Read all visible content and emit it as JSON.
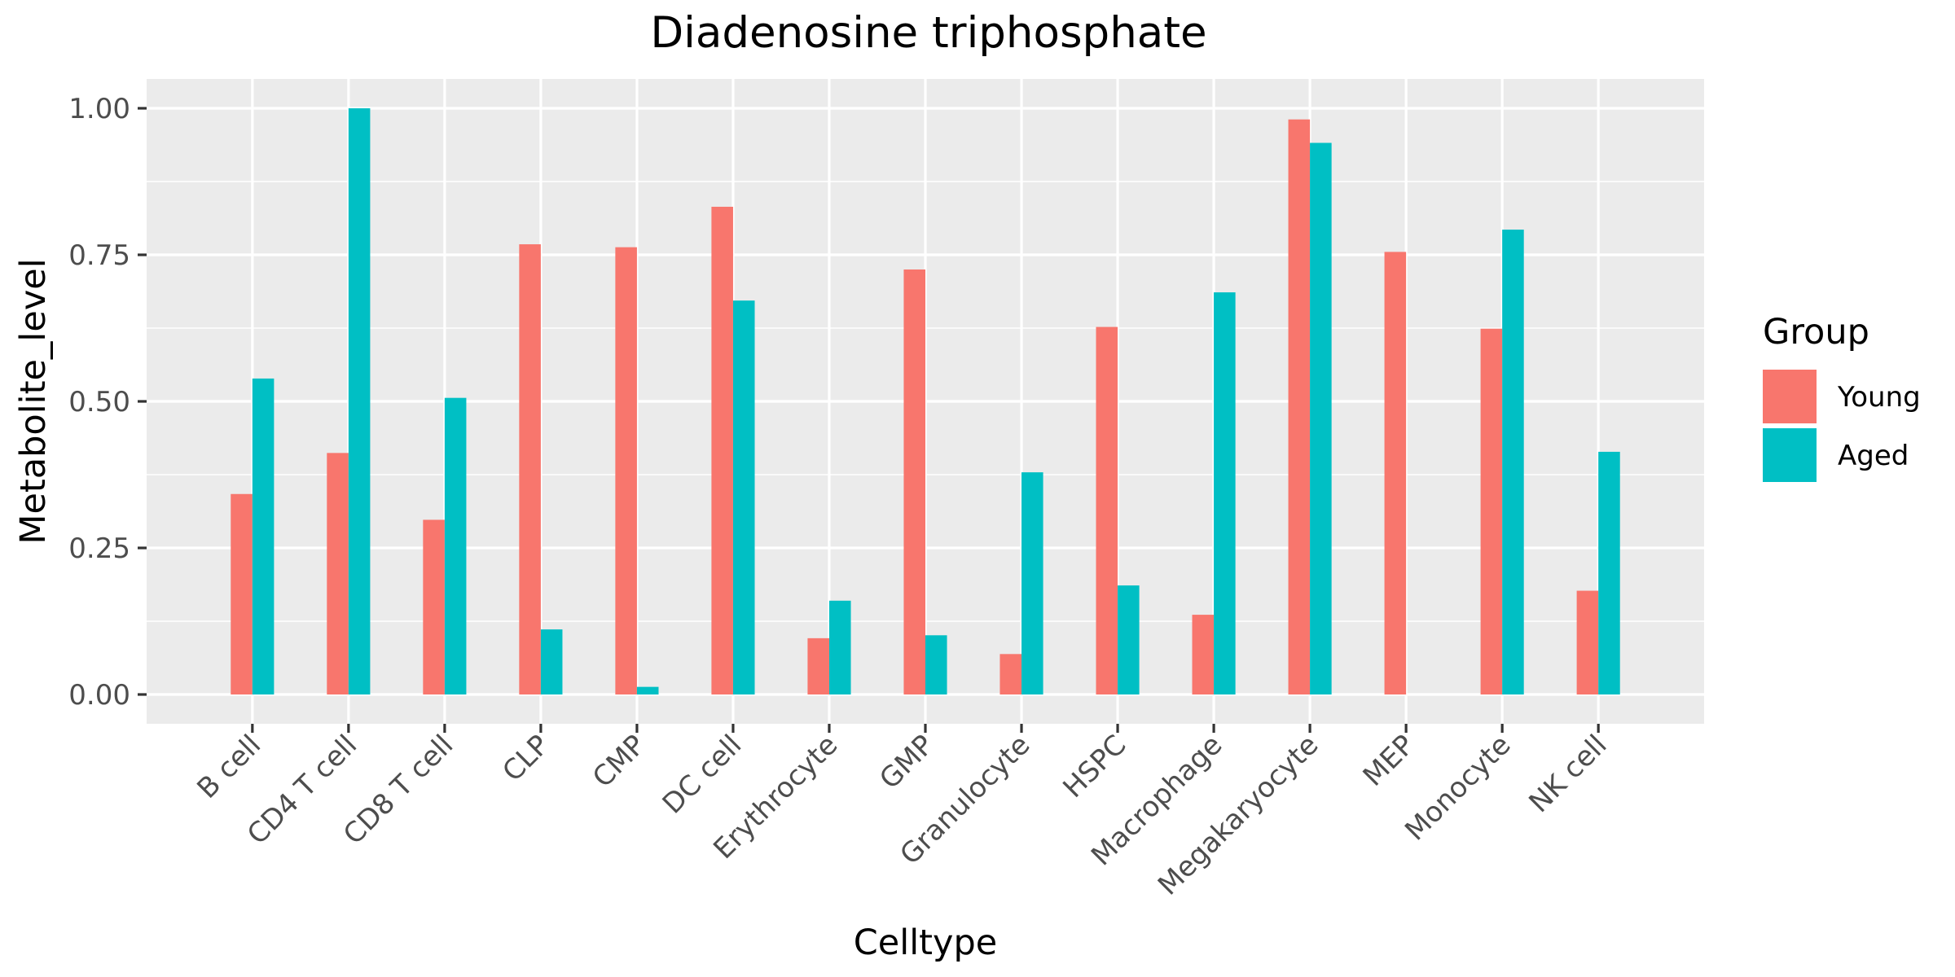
{
  "chart_data": {
    "type": "bar",
    "title": "Diadenosine triphosphate",
    "xlabel": "Celltype",
    "ylabel": "Metabolite_level",
    "ylim": [
      -0.05,
      1.05
    ],
    "yticks": [
      0,
      0.25,
      0.5,
      0.75,
      1.0
    ],
    "ytick_labels": [
      "0.00",
      "0.25",
      "0.50",
      "0.75",
      "1.00"
    ],
    "grid": true,
    "legend": {
      "title": "Group",
      "placement": "right"
    },
    "categories": [
      "B cell",
      "CD4 T cell",
      "CD8 T cell",
      "CLP",
      "CMP",
      "DC cell",
      "Erythrocyte",
      "GMP",
      "Granulocyte",
      "HSPC",
      "Macrophage",
      "Megakaryocyte",
      "MEP",
      "Monocyte",
      "NK cell"
    ],
    "series": [
      {
        "name": "Young",
        "color": "#F8766D",
        "values": [
          0.342,
          0.412,
          0.298,
          0.768,
          0.763,
          0.832,
          0.096,
          0.725,
          0.069,
          0.627,
          0.136,
          0.981,
          0.755,
          0.624,
          0.177
        ]
      },
      {
        "name": "Aged",
        "color": "#00BFC4",
        "values": [
          0.539,
          1.0,
          0.506,
          0.111,
          0.013,
          0.672,
          0.16,
          0.101,
          0.379,
          0.186,
          0.686,
          0.941,
          0.0,
          0.793,
          0.414
        ]
      }
    ]
  }
}
